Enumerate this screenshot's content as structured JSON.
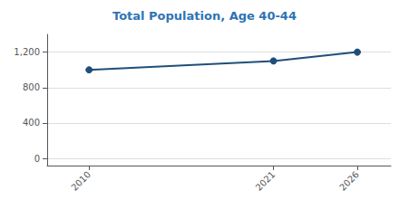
{
  "chart_data": {
    "type": "line",
    "title": "Total Population, Age 40-44",
    "x": [
      2010,
      2021,
      2026
    ],
    "values": [
      1000,
      1100,
      1200
    ],
    "color": "#1f4e79",
    "marker": "circle",
    "xlim": [
      2007.5,
      2028
    ],
    "xticks": [
      2010,
      2021,
      2026
    ],
    "ylim": [
      -80,
      1400
    ],
    "yticks": [
      0,
      400,
      800,
      {
        "value": 1200,
        "label": "1,200"
      }
    ],
    "grid": true
  }
}
